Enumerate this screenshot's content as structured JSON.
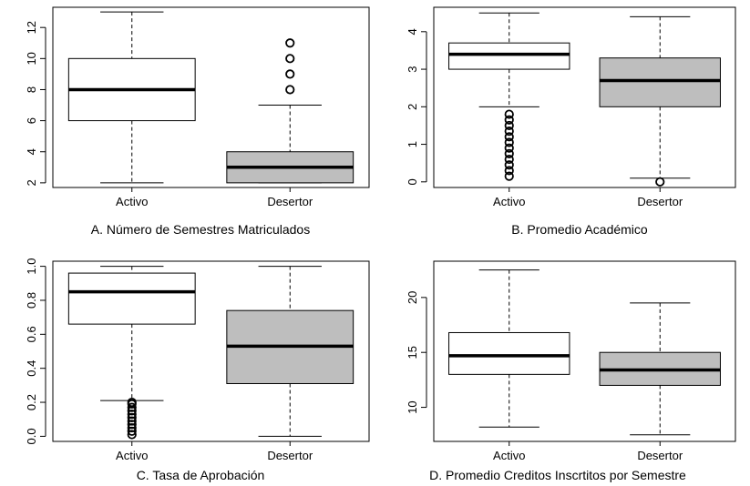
{
  "colors": {
    "activo_fill": "#ffffff",
    "desertor_fill": "#bebebe",
    "stroke": "#000000"
  },
  "chart_data": [
    {
      "type": "box",
      "caption": "A. Número de Semestres Matriculados",
      "categories": [
        "Activo",
        "Desertor"
      ],
      "ylim": [
        1.7,
        13.3
      ],
      "yticks": [
        2,
        4,
        6,
        8,
        10,
        12
      ],
      "ytick_labels": [
        "2",
        "4",
        "6",
        "8",
        "10",
        "12"
      ],
      "series": [
        {
          "category": "Activo",
          "fill": "#ffffff",
          "min": 2,
          "q1": 6,
          "median": 8,
          "q3": 10,
          "max": 13,
          "outliers": []
        },
        {
          "category": "Desertor",
          "fill": "#bebebe",
          "min": 2,
          "q1": 2,
          "median": 3,
          "q3": 4,
          "max": 7,
          "outliers": [
            8,
            9,
            10,
            11
          ]
        }
      ]
    },
    {
      "type": "box",
      "caption": "B. Promedio Académico",
      "categories": [
        "Activo",
        "Desertor"
      ],
      "ylim": [
        -0.15,
        4.65
      ],
      "yticks": [
        0,
        1,
        2,
        3,
        4
      ],
      "ytick_labels": [
        "0",
        "1",
        "2",
        "3",
        "4"
      ],
      "series": [
        {
          "category": "Activo",
          "fill": "#ffffff",
          "min": 2.0,
          "q1": 3.0,
          "median": 3.4,
          "q3": 3.7,
          "max": 4.5,
          "outliers": [
            0.15,
            0.3,
            0.45,
            0.6,
            0.75,
            0.9,
            1.05,
            1.2,
            1.35,
            1.5,
            1.65,
            1.8
          ]
        },
        {
          "category": "Desertor",
          "fill": "#bebebe",
          "min": 0.1,
          "q1": 2.0,
          "median": 2.7,
          "q3": 3.3,
          "max": 4.4,
          "outliers": [
            0
          ]
        }
      ]
    },
    {
      "type": "box",
      "caption": "C. Tasa de Aprobación",
      "categories": [
        "Activo",
        "Desertor"
      ],
      "ylim": [
        -0.03,
        1.03
      ],
      "yticks": [
        0.0,
        0.2,
        0.4,
        0.6,
        0.8,
        1.0
      ],
      "ytick_labels": [
        "0.0",
        "0.2",
        "0.4",
        "0.6",
        "0.8",
        "1.0"
      ],
      "series": [
        {
          "category": "Activo",
          "fill": "#ffffff",
          "min": 0.21,
          "q1": 0.66,
          "median": 0.85,
          "q3": 0.96,
          "max": 1.0,
          "outliers": [
            0.01,
            0.03,
            0.05,
            0.07,
            0.09,
            0.11,
            0.13,
            0.15,
            0.17,
            0.19,
            0.2
          ]
        },
        {
          "category": "Desertor",
          "fill": "#bebebe",
          "min": 0.0,
          "q1": 0.31,
          "median": 0.53,
          "q3": 0.74,
          "max": 1.0,
          "outliers": []
        }
      ]
    },
    {
      "type": "box",
      "caption": "D. Promedio Creditos Inscrtitos por Semestre",
      "categories": [
        "Activo",
        "Desertor"
      ],
      "ylim": [
        6.9,
        23.3
      ],
      "yticks": [
        10,
        15,
        20
      ],
      "ytick_labels": [
        "10",
        "15",
        "20"
      ],
      "series": [
        {
          "category": "Activo",
          "fill": "#ffffff",
          "min": 8.2,
          "q1": 13.0,
          "median": 14.7,
          "q3": 16.8,
          "max": 22.5,
          "outliers": []
        },
        {
          "category": "Desertor",
          "fill": "#bebebe",
          "min": 7.5,
          "q1": 12.0,
          "median": 13.4,
          "q3": 15.0,
          "max": 19.5,
          "outliers": []
        }
      ]
    }
  ]
}
